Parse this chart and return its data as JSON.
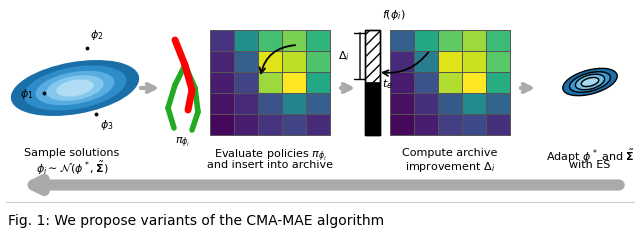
{
  "fig_width": 6.4,
  "fig_height": 2.44,
  "dpi": 100,
  "bg_color": "#ffffff",
  "caption_text": "Fig. 1: We propose variants of the CMA-MAE algorithm",
  "caption_fontsize": 10.0,
  "caption_color": "#000000",
  "archive_grid1": [
    [
      0.15,
      0.5,
      0.7,
      0.8,
      0.65
    ],
    [
      0.1,
      0.3,
      0.95,
      0.9,
      0.72
    ],
    [
      0.08,
      0.2,
      0.85,
      1.0,
      0.6
    ],
    [
      0.05,
      0.12,
      0.25,
      0.45,
      0.3
    ],
    [
      0.02,
      0.08,
      0.15,
      0.2,
      0.12
    ]
  ],
  "archive_grid2": [
    [
      0.3,
      0.6,
      0.75,
      0.85,
      0.68
    ],
    [
      0.12,
      0.42,
      0.95,
      0.92,
      0.74
    ],
    [
      0.08,
      0.25,
      0.88,
      1.0,
      0.62
    ],
    [
      0.04,
      0.14,
      0.28,
      0.48,
      0.32
    ],
    [
      0.02,
      0.08,
      0.18,
      0.22,
      0.14
    ]
  ],
  "ellipse_fills": [
    "#1a6fa8",
    "#2e8cc8",
    "#5aade0",
    "#85c8ee",
    "#b0ddf5"
  ],
  "ellipse2_fills": [
    "#1a6fa8",
    "#3a9ad0",
    "#70bce0",
    "#a8d8ef"
  ],
  "arrow_color": "#aaaaaa",
  "black": "#000000",
  "gray_dark": "#555555",
  "step1_label1": "Sample solutions",
  "step1_label2": "$\\phi_i \\sim \\mathcal{N}(\\phi^*, \\tilde{\\boldsymbol{\\Sigma}})$",
  "step2_label1": "Evaluate policies $\\pi_{\\phi_i}$",
  "step2_label2": "and insert into archive",
  "step3_label1": "Compute archive",
  "step3_label2": "improvement $\\Delta_i$",
  "step4_label1": "Adapt $\\phi^*$ and $\\tilde{\\boldsymbol{\\Sigma}}$",
  "step4_label2": "with ES",
  "phi1": "$\\phi_1$",
  "phi2": "$\\phi_2$",
  "phi3": "$\\phi_3$",
  "f_phi": "$f(\\phi_i)$",
  "Delta_i": "$\\Delta_i$",
  "t_e": "$t_e$",
  "pi_phi": "$\\pi_{\\phi_i}$"
}
